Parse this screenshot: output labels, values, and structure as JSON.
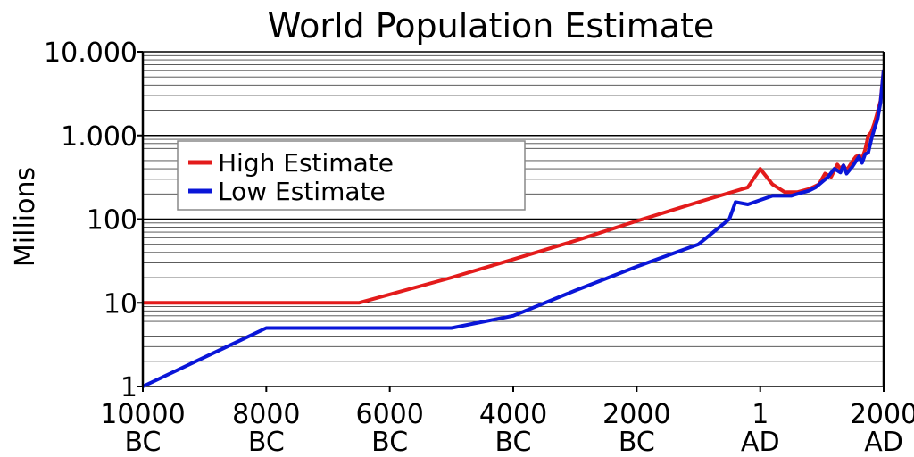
{
  "chart_data": {
    "type": "line",
    "title": "World Population Estimate",
    "ylabel": "Millions",
    "xlabel": "",
    "y_scale": "log",
    "ylim": [
      1,
      10000
    ],
    "xlim": [
      -10000,
      2000
    ],
    "grid": true,
    "legend_position": "upper-left",
    "y_ticks": [
      {
        "value": 1,
        "label": "1"
      },
      {
        "value": 10,
        "label": "10"
      },
      {
        "value": 100,
        "label": "100"
      },
      {
        "value": 1000,
        "label": "1.000"
      },
      {
        "value": 10000,
        "label": "10.000"
      }
    ],
    "x_ticks": [
      {
        "value": -10000,
        "line1": "10000",
        "line2": "BC"
      },
      {
        "value": -8000,
        "line1": "8000",
        "line2": "BC"
      },
      {
        "value": -6000,
        "line1": "6000",
        "line2": "BC"
      },
      {
        "value": -4000,
        "line1": "4000",
        "line2": "BC"
      },
      {
        "value": -2000,
        "line1": "2000",
        "line2": "BC"
      },
      {
        "value": 1,
        "line1": "1",
        "line2": "AD"
      },
      {
        "value": 2000,
        "line1": "2000",
        "line2": "AD"
      }
    ],
    "series": [
      {
        "name": "High Estimate",
        "color": "#e31b1b",
        "points": [
          [
            -10000,
            10
          ],
          [
            -6500,
            10
          ],
          [
            -5000,
            20
          ],
          [
            -4000,
            33
          ],
          [
            -3000,
            55
          ],
          [
            -2000,
            95
          ],
          [
            -1000,
            160
          ],
          [
            -200,
            240
          ],
          [
            1,
            400
          ],
          [
            200,
            260
          ],
          [
            400,
            210
          ],
          [
            600,
            210
          ],
          [
            800,
            230
          ],
          [
            950,
            260
          ],
          [
            1050,
            350
          ],
          [
            1150,
            320
          ],
          [
            1250,
            450
          ],
          [
            1300,
            400
          ],
          [
            1350,
            440
          ],
          [
            1400,
            380
          ],
          [
            1500,
            500
          ],
          [
            1550,
            560
          ],
          [
            1600,
            580
          ],
          [
            1650,
            530
          ],
          [
            1700,
            680
          ],
          [
            1750,
            990
          ],
          [
            1800,
            1100
          ],
          [
            1850,
            1400
          ],
          [
            1900,
            1900
          ],
          [
            1950,
            2600
          ],
          [
            2000,
            6100
          ]
        ]
      },
      {
        "name": "Low Estimate",
        "color": "#0a16d8",
        "points": [
          [
            -10000,
            1
          ],
          [
            -8000,
            5
          ],
          [
            -5000,
            5
          ],
          [
            -4000,
            7
          ],
          [
            -3000,
            14
          ],
          [
            -2000,
            27
          ],
          [
            -1000,
            50
          ],
          [
            -500,
            100
          ],
          [
            -400,
            160
          ],
          [
            -200,
            150
          ],
          [
            200,
            190
          ],
          [
            500,
            190
          ],
          [
            600,
            200
          ],
          [
            800,
            220
          ],
          [
            900,
            240
          ],
          [
            1100,
            320
          ],
          [
            1200,
            400
          ],
          [
            1300,
            360
          ],
          [
            1350,
            440
          ],
          [
            1400,
            350
          ],
          [
            1500,
            430
          ],
          [
            1600,
            560
          ],
          [
            1650,
            470
          ],
          [
            1700,
            600
          ],
          [
            1750,
            620
          ],
          [
            1800,
            900
          ],
          [
            1850,
            1200
          ],
          [
            1900,
            1550
          ],
          [
            1950,
            2500
          ],
          [
            2000,
            6100
          ]
        ]
      }
    ]
  }
}
